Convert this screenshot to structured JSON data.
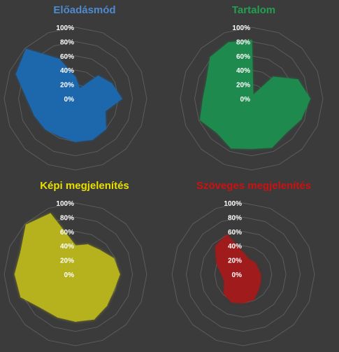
{
  "chart_data": [
    {
      "type": "radar",
      "title": "Előadásmód",
      "title_color": "#4e8ad0",
      "fill_color": "#1d68ac",
      "tick_labels": [
        "0%",
        "20%",
        "40%",
        "60%",
        "80%",
        "100%"
      ],
      "ylim": [
        0,
        1
      ],
      "grid": true,
      "values": [
        0.3,
        0.15,
        0.45,
        0.55,
        0.65,
        0.45,
        0.6,
        0.62,
        0.6,
        0.57,
        0.6,
        0.62,
        0.68,
        0.9,
        0.98,
        0.6
      ]
    },
    {
      "type": "radar",
      "title": "Tartalom",
      "title_color": "#22a050",
      "fill_color": "#1f8a4d",
      "tick_labels": [
        "0%",
        "20%",
        "40%",
        "60%",
        "80%",
        "100%"
      ],
      "ylim": [
        0,
        1
      ],
      "grid": true,
      "values": [
        0.82,
        0.05,
        0.43,
        0.7,
        0.82,
        0.75,
        0.68,
        0.74,
        0.7,
        0.75,
        0.68,
        0.78,
        0.68,
        0.68,
        0.82,
        0.85
      ]
    },
    {
      "type": "radar",
      "title": "Képi megjelenítés",
      "title_color": "#e8e000",
      "fill_color": "#b5b21e",
      "tick_labels": [
        "0%",
        "20%",
        "40%",
        "60%",
        "80%",
        "100%"
      ],
      "ylim": [
        0,
        1
      ],
      "grid": true,
      "values": [
        0.4,
        0.45,
        0.48,
        0.58,
        0.62,
        0.58,
        0.62,
        0.68,
        0.66,
        0.65,
        0.67,
        0.83,
        0.85,
        0.83,
        0.98,
        0.92
      ]
    },
    {
      "type": "radar",
      "title": "Szöveges megjelenítés",
      "title_color": "#cc1111",
      "fill_color": "#a01c1c",
      "tick_labels": [
        "0%",
        "20%",
        "40%",
        "60%",
        "80%",
        "100%"
      ],
      "ylim": [
        0,
        1
      ],
      "grid": true,
      "values": [
        0.3,
        0.22,
        0.23,
        0.22,
        0.24,
        0.26,
        0.3,
        0.38,
        0.4,
        0.42,
        0.38,
        0.28,
        0.3,
        0.4,
        0.55,
        0.6
      ]
    }
  ]
}
